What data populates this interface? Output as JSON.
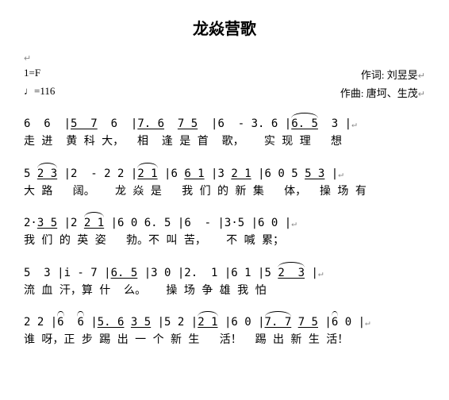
{
  "title": "龙焱营歌",
  "meta": {
    "key": "1=F",
    "tempo": "♩=116",
    "lyricist_label": "作词: 刘昱旻",
    "composer_label": "作曲: 唐坷、生茂"
  },
  "lines": [
    {
      "score": "6  6  |5  7  6  |7. 6  7 5  |6  - 3. 6 |6. 5  3 |",
      "lyric": "走 进  黄 科 大，  相  逢 是 首  歌，   实 现 理   想"
    },
    {
      "score": "5 2 3 |2  - 2 2 |2 1 |6 6 1 |3 2 1 |6 0 5 5 3 |",
      "lyric": "大 路   阔。   龙 焱 是   我 们 的 新 集   体，  操 场 有"
    },
    {
      "score": "2·3 5 |2 2 1 |6 0 6. 5 |6  - |3·5 |6 0 |",
      "lyric": "我 们 的 英 姿   勃。不 叫 苦，   不 喊 累；"
    },
    {
      "score": "5  3 |i - 7 |6. 5 |3 0 |2.  1 |6 1 |5 2  3 |",
      "lyric": "流 血 汗，算 什  么。   操 场 争 雄 我 怕"
    },
    {
      "score": "2 2 |6  6 |5. 6 3 5 |5 2 |2 1 |6 0 |7. 7 7 5 |6 0 |",
      "lyric": "谁 呀，正 步 踢 出 一 个 新 生   活！  踢 出 新 生 活！"
    }
  ]
}
